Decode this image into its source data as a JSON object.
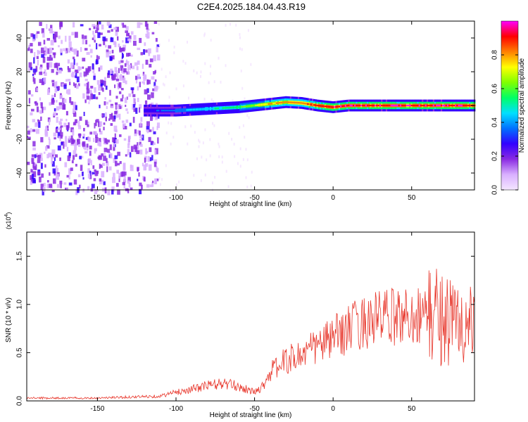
{
  "title": "C2E4.2025.184.04.43.R19",
  "chart_data": [
    {
      "type": "heatmap",
      "xlabel": "Height of straight line (km)",
      "ylabel": "Frequency (Hz)",
      "xlim": [
        -195,
        90
      ],
      "ylim": [
        -50,
        50
      ],
      "xticks": [
        -150,
        -100,
        -50,
        0,
        50
      ],
      "yticks": [
        -40,
        -20,
        0,
        20,
        40
      ],
      "colorbar": {
        "label": "Normalized spectral amplitude",
        "range": [
          0.0,
          1.0
        ],
        "ticks": [
          "0.0",
          "0.2",
          "0.4",
          "0.6",
          "0.8"
        ],
        "colors": [
          "#f4e6ff",
          "#d9b0ff",
          "#8a2be2",
          "#3300ff",
          "#0070ff",
          "#00e0ff",
          "#00ff66",
          "#80ff00",
          "#ffff00",
          "#ff8000",
          "#ff0000",
          "#ff00ff"
        ]
      },
      "ridge": {
        "x": [
          -120,
          -110,
          -100,
          -90,
          -80,
          -70,
          -60,
          -50,
          -40,
          -30,
          -20,
          -10,
          0,
          10,
          20,
          40,
          60,
          80,
          90
        ],
        "freq": [
          -3,
          -3,
          -3,
          -2.5,
          -2,
          -1.5,
          -1,
          0,
          1,
          2,
          1.5,
          0,
          -1,
          0,
          0,
          0,
          0,
          0,
          0
        ],
        "amplitude": [
          0.3,
          0.35,
          0.4,
          0.45,
          0.5,
          0.55,
          0.6,
          0.7,
          0.8,
          0.85,
          0.9,
          0.95,
          1.0,
          1.0,
          1.0,
          1.0,
          1.0,
          1.0,
          0.95
        ]
      },
      "noise_region_x": [
        -195,
        -112
      ]
    },
    {
      "type": "line",
      "xlabel": "Height of straight line (km)",
      "ylabel": "SNR (10 * v/v)",
      "yscale_label": "(x10",
      "yscale_exp": "4",
      "yscale_close": ")",
      "xlim": [
        -195,
        90
      ],
      "ylim": [
        0,
        17500
      ],
      "xticks": [
        -150,
        -100,
        -50,
        0,
        50
      ],
      "yticks": [
        {
          "value": 0,
          "label": "0.0"
        },
        {
          "value": 5000,
          "label": "0.5"
        },
        {
          "value": 10000,
          "label": "1.0"
        },
        {
          "value": 15000,
          "label": "1.5"
        }
      ],
      "color": "#e8392e",
      "x": [
        -195,
        -150,
        -110,
        -100,
        -90,
        -80,
        -70,
        -60,
        -50,
        -45,
        -40,
        -30,
        -20,
        -10,
        0,
        10,
        20,
        30,
        40,
        50,
        60,
        70,
        75,
        80,
        85,
        90
      ],
      "y": [
        300,
        300,
        500,
        900,
        1200,
        1600,
        1800,
        1500,
        900,
        1500,
        3000,
        4200,
        4800,
        5700,
        6500,
        7500,
        8200,
        8600,
        8700,
        8900,
        9000,
        8800,
        8200,
        8000,
        7800,
        7200
      ]
    }
  ]
}
